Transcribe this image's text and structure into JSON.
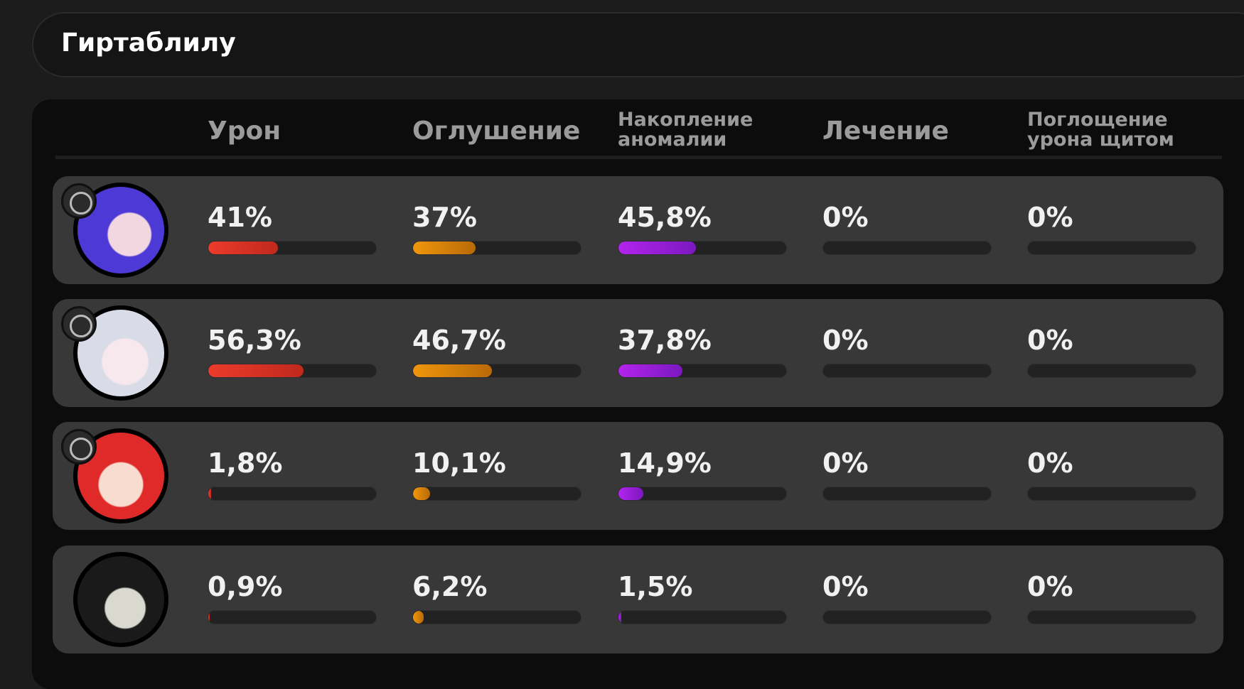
{
  "header": {
    "title": "Гиртаблилу"
  },
  "table": {
    "columns": [
      "Урон",
      "Оглушение",
      "Накопление аномалии",
      "Лечение",
      "Поглощение урона щитом"
    ],
    "rows": [
      {
        "values": [
          41,
          37,
          45.8,
          0,
          0
        ],
        "value_labels": [
          "41%",
          "37%",
          "45,8%",
          "0%",
          "0%"
        ]
      },
      {
        "values": [
          56.3,
          46.7,
          37.8,
          0,
          0
        ],
        "value_labels": [
          "56,3%",
          "46,7%",
          "37,8%",
          "0%",
          "0%"
        ]
      },
      {
        "values": [
          1.8,
          10.1,
          14.9,
          0,
          0
        ],
        "value_labels": [
          "1,8%",
          "10,1%",
          "14,9%",
          "0%",
          "0%"
        ]
      },
      {
        "values": [
          0.9,
          6.2,
          1.5,
          0,
          0
        ],
        "value_labels": [
          "0,9%",
          "6,2%",
          "1,5%",
          "0%",
          "0%"
        ]
      }
    ]
  }
}
